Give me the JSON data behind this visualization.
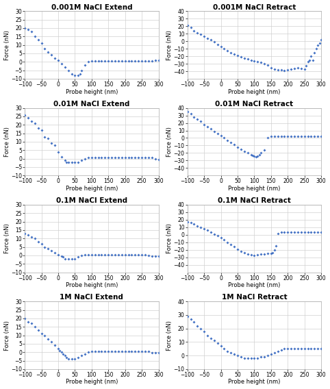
{
  "plots": [
    {
      "title": "0.001M NaCl Extend",
      "row": 0,
      "col": 0,
      "xlim": [
        -100,
        300
      ],
      "ylim": [
        -10,
        30
      ],
      "yticks": [
        -10,
        -5,
        0,
        5,
        10,
        15,
        20,
        25,
        30
      ],
      "xticks": [
        -100,
        -50,
        0,
        50,
        100,
        150,
        200,
        250,
        300
      ],
      "x": [
        -100,
        -90,
        -80,
        -70,
        -60,
        -50,
        -40,
        -30,
        -20,
        -10,
        0,
        10,
        20,
        30,
        40,
        50,
        60,
        65,
        70,
        80,
        90,
        100,
        110,
        120,
        130,
        140,
        150,
        160,
        170,
        180,
        190,
        200,
        210,
        220,
        230,
        240,
        250,
        260,
        270,
        280,
        290,
        300
      ],
      "y": [
        20,
        19,
        18,
        15,
        13,
        11,
        8,
        6,
        4,
        2,
        1,
        -1,
        -3,
        -5,
        -7,
        -8,
        -8,
        -7,
        -5,
        -2,
        0,
        0.5,
        0.5,
        0.5,
        0.5,
        0.5,
        0.5,
        0.5,
        0.5,
        0.5,
        0.5,
        0.5,
        0.5,
        0.5,
        0.5,
        0.5,
        0.5,
        0.5,
        0.5,
        0.5,
        1,
        1
      ]
    },
    {
      "title": "0.001M NaCl Retract",
      "row": 0,
      "col": 1,
      "xlim": [
        -100,
        300
      ],
      "ylim": [
        -50,
        40
      ],
      "yticks": [
        -40,
        -30,
        -20,
        -10,
        0,
        10,
        20,
        30,
        40
      ],
      "xticks": [
        -100,
        -50,
        0,
        50,
        100,
        150,
        200,
        250,
        300
      ],
      "x": [
        -100,
        -90,
        -80,
        -70,
        -60,
        -50,
        -40,
        -30,
        -20,
        -10,
        0,
        10,
        20,
        30,
        40,
        50,
        60,
        70,
        80,
        90,
        100,
        110,
        120,
        130,
        140,
        150,
        160,
        170,
        180,
        190,
        200,
        210,
        220,
        230,
        240,
        250,
        255,
        260,
        265,
        270,
        275,
        280,
        285,
        290,
        295,
        300
      ],
      "y": [
        21,
        18,
        14,
        11,
        9,
        7,
        4,
        2,
        -1,
        -4,
        -7,
        -10,
        -13,
        -15,
        -17,
        -19,
        -21,
        -23,
        -24,
        -25,
        -26,
        -27,
        -28,
        -30,
        -32,
        -35,
        -37,
        -38,
        -38,
        -39,
        -38,
        -37,
        -36,
        -35,
        -36,
        -37,
        -33,
        -27,
        -25,
        -20,
        -25,
        -15,
        -10,
        -5,
        -3,
        2
      ]
    },
    {
      "title": "0.01M NaCl Extend",
      "row": 1,
      "col": 0,
      "xlim": [
        -100,
        300
      ],
      "ylim": [
        -10,
        30
      ],
      "yticks": [
        -10,
        -5,
        0,
        5,
        10,
        15,
        20,
        25,
        30
      ],
      "xticks": [
        -100,
        -50,
        0,
        50,
        100,
        150,
        200,
        250,
        300
      ],
      "x": [
        -100,
        -90,
        -80,
        -70,
        -60,
        -50,
        -40,
        -30,
        -20,
        -10,
        0,
        10,
        20,
        25,
        30,
        40,
        50,
        60,
        70,
        80,
        90,
        100,
        110,
        120,
        130,
        140,
        150,
        160,
        170,
        180,
        190,
        200,
        210,
        220,
        230,
        240,
        250,
        260,
        270,
        280,
        290,
        300
      ],
      "y": [
        26,
        24,
        22,
        21,
        18,
        17,
        13,
        12,
        9,
        8,
        4,
        1,
        -1,
        -2,
        -2,
        -2,
        -2,
        -2,
        -1,
        0,
        0.5,
        0.5,
        0.5,
        0.5,
        0.5,
        0.5,
        0.5,
        0.5,
        0.5,
        0.5,
        0.5,
        0.5,
        0.5,
        0.5,
        0.5,
        0.5,
        0.5,
        0.5,
        0.5,
        0.5,
        0,
        -0.5
      ]
    },
    {
      "title": "0.01M NaCl Retract",
      "row": 1,
      "col": 1,
      "xlim": [
        -100,
        300
      ],
      "ylim": [
        -50,
        40
      ],
      "yticks": [
        -40,
        -30,
        -20,
        -10,
        0,
        10,
        20,
        30,
        40
      ],
      "xticks": [
        -100,
        -50,
        0,
        50,
        100,
        150,
        200,
        250,
        300
      ],
      "x": [
        -100,
        -90,
        -80,
        -70,
        -60,
        -50,
        -40,
        -30,
        -20,
        -10,
        0,
        10,
        20,
        30,
        40,
        50,
        60,
        70,
        80,
        90,
        95,
        100,
        105,
        110,
        115,
        120,
        130,
        140,
        150,
        160,
        170,
        180,
        190,
        200,
        210,
        220,
        230,
        240,
        250,
        260,
        270,
        280,
        290,
        300
      ],
      "y": [
        35,
        32,
        28,
        25,
        22,
        18,
        15,
        12,
        9,
        6,
        3,
        0,
        -3,
        -6,
        -9,
        -12,
        -15,
        -18,
        -20,
        -22,
        -23,
        -24,
        -25,
        -24,
        -22,
        -20,
        -16,
        0,
        2,
        2,
        2,
        2,
        2,
        2,
        2,
        2,
        2,
        2,
        2,
        2,
        2,
        2,
        2,
        2
      ]
    },
    {
      "title": "0.1M NaCl Extend",
      "row": 2,
      "col": 0,
      "xlim": [
        -100,
        300
      ],
      "ylim": [
        -10,
        30
      ],
      "yticks": [
        -10,
        -5,
        0,
        5,
        10,
        15,
        20,
        25,
        30
      ],
      "xticks": [
        -100,
        -50,
        0,
        50,
        100,
        150,
        200,
        250,
        300
      ],
      "x": [
        -100,
        -90,
        -80,
        -70,
        -60,
        -50,
        -40,
        -30,
        -20,
        -10,
        0,
        10,
        15,
        20,
        30,
        40,
        50,
        60,
        70,
        80,
        90,
        100,
        110,
        120,
        130,
        140,
        150,
        160,
        170,
        180,
        190,
        200,
        210,
        220,
        230,
        240,
        250,
        260,
        270,
        280,
        290,
        300
      ],
      "y": [
        13,
        12,
        11,
        10,
        8,
        7,
        5,
        4,
        3,
        1.5,
        0.5,
        -0.5,
        -1,
        -2,
        -2,
        -2,
        -2,
        -1,
        0,
        0.5,
        0.5,
        0.5,
        0.5,
        0.5,
        0.5,
        0.5,
        0.5,
        0.5,
        0.5,
        0.5,
        0.5,
        0.5,
        0.5,
        0.5,
        0.5,
        0.5,
        0.5,
        0.5,
        0,
        -0.5,
        -0.5,
        -0.5
      ]
    },
    {
      "title": "0.1M NaCl Retract",
      "row": 2,
      "col": 1,
      "xlim": [
        -100,
        300
      ],
      "ylim": [
        -50,
        40
      ],
      "yticks": [
        -40,
        -30,
        -20,
        -10,
        0,
        10,
        20,
        30,
        40
      ],
      "xticks": [
        -100,
        -50,
        0,
        50,
        100,
        150,
        200,
        250,
        300
      ],
      "x": [
        -100,
        -90,
        -80,
        -70,
        -60,
        -50,
        -40,
        -30,
        -20,
        -10,
        0,
        10,
        20,
        30,
        40,
        50,
        60,
        70,
        80,
        90,
        100,
        110,
        120,
        130,
        140,
        150,
        155,
        160,
        165,
        170,
        180,
        190,
        200,
        210,
        220,
        230,
        240,
        250,
        260,
        270,
        280,
        290,
        300
      ],
      "y": [
        17,
        16,
        14,
        12,
        10,
        8,
        6,
        3,
        1,
        -1,
        -4,
        -7,
        -10,
        -13,
        -16,
        -19,
        -22,
        -24,
        -26,
        -27,
        -28,
        -27,
        -26,
        -26,
        -25,
        -25,
        -24,
        -20,
        -15,
        2,
        3,
        3,
        3,
        3,
        3,
        3,
        3,
        3,
        3,
        3,
        3,
        3,
        3
      ]
    },
    {
      "title": "1M NaCl Extend",
      "row": 3,
      "col": 0,
      "xlim": [
        -100,
        300
      ],
      "ylim": [
        -10,
        30
      ],
      "yticks": [
        -10,
        -5,
        0,
        5,
        10,
        15,
        20,
        25,
        30
      ],
      "xticks": [
        -100,
        -50,
        0,
        50,
        100,
        150,
        200,
        250,
        300
      ],
      "x": [
        -100,
        -90,
        -80,
        -70,
        -60,
        -50,
        -40,
        -30,
        -20,
        -10,
        0,
        5,
        10,
        15,
        20,
        25,
        30,
        40,
        50,
        60,
        70,
        80,
        90,
        100,
        110,
        120,
        130,
        140,
        150,
        160,
        170,
        180,
        190,
        200,
        210,
        220,
        230,
        240,
        250,
        260,
        270,
        280,
        290,
        300
      ],
      "y": [
        20,
        18,
        17,
        15,
        13,
        11,
        10,
        8,
        6,
        4,
        2,
        1,
        0,
        -1,
        -2,
        -3,
        -4,
        -4,
        -4,
        -3,
        -2,
        -1,
        0,
        0.5,
        0.5,
        0.5,
        0.5,
        0.5,
        0.5,
        0.5,
        0.5,
        0.5,
        0.5,
        0.5,
        0.5,
        0.5,
        0.5,
        0.5,
        0.5,
        0.5,
        0.5,
        -0.5,
        -0.5,
        -0.5
      ]
    },
    {
      "title": "1M NaCl Retract",
      "row": 3,
      "col": 1,
      "xlim": [
        -100,
        300
      ],
      "ylim": [
        -10,
        40
      ],
      "yticks": [
        -10,
        0,
        10,
        20,
        30,
        40
      ],
      "xticks": [
        -100,
        -50,
        0,
        50,
        100,
        150,
        200,
        250,
        300
      ],
      "x": [
        -100,
        -90,
        -80,
        -70,
        -60,
        -50,
        -40,
        -30,
        -20,
        -10,
        0,
        10,
        20,
        30,
        40,
        50,
        60,
        70,
        80,
        90,
        100,
        110,
        120,
        130,
        140,
        150,
        160,
        170,
        180,
        190,
        200,
        210,
        220,
        230,
        240,
        250,
        260,
        270,
        280,
        290,
        300
      ],
      "y": [
        29,
        27,
        25,
        22,
        20,
        18,
        15,
        13,
        11,
        9,
        7,
        5,
        3,
        2,
        1,
        0,
        -1,
        -2,
        -2,
        -2,
        -2,
        -2,
        -1,
        -1,
        0,
        1,
        2,
        3,
        4,
        5,
        5,
        5,
        5,
        5,
        5,
        5,
        5,
        5,
        5,
        5,
        5
      ]
    }
  ],
  "dot_color": "#4472C4",
  "dot_size": 4,
  "marker": "D",
  "xlabel": "Probe height (nm)",
  "ylabel": "Force (nN)",
  "bg_color": "#ffffff",
  "grid_color": "#d0d0d0",
  "title_fontsize": 7.5,
  "label_fontsize": 6,
  "tick_fontsize": 5.5
}
